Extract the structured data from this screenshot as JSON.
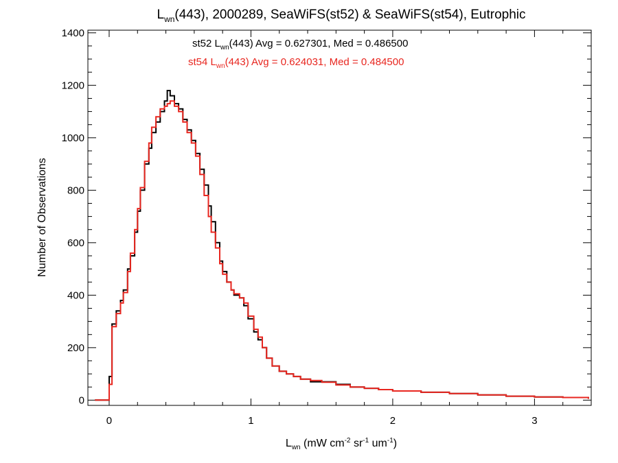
{
  "chart_data": {
    "type": "line",
    "title": {
      "prefix": "L",
      "sub": "wn",
      "suffix": "(443), 2000289, SeaWiFS(st52) & SeaWiFS(st54), Eutrophic"
    },
    "xlabel": {
      "prefix": "L",
      "sub": "wn",
      "p1": " (mW cm",
      "s1": "-2",
      "p2": " sr",
      "s2": "-1",
      "p3": " um",
      "s3": "-1",
      "p4": ")"
    },
    "ylabel": "Number of Observations",
    "xlim": [
      -0.15,
      3.4
    ],
    "ylim": [
      -20,
      1410
    ],
    "xticks": [
      {
        "v": 0,
        "label": "0"
      },
      {
        "v": 1,
        "label": "1"
      },
      {
        "v": 2,
        "label": "2"
      },
      {
        "v": 3,
        "label": "3"
      }
    ],
    "yticks": [
      {
        "v": 0,
        "label": "0"
      },
      {
        "v": 200,
        "label": "200"
      },
      {
        "v": 400,
        "label": "400"
      },
      {
        "v": 600,
        "label": "600"
      },
      {
        "v": 800,
        "label": "800"
      },
      {
        "v": 1000,
        "label": "1000"
      },
      {
        "v": 1200,
        "label": "1200"
      },
      {
        "v": 1400,
        "label": "1400"
      }
    ],
    "legend": [
      {
        "color": "#000000",
        "pre": "st52 L",
        "sub": "wn",
        "post": "(443) Avg = 0.627301, Med = 0.486500"
      },
      {
        "color": "#e8261f",
        "pre": "st54 L",
        "sub": "wn",
        "post": "(443) Avg = 0.624031, Med = 0.484500"
      }
    ],
    "series": [
      {
        "color": "#000000",
        "points": [
          [
            -0.1,
            0
          ],
          [
            0,
            0
          ],
          [
            0,
            90
          ],
          [
            0.02,
            290
          ],
          [
            0.05,
            340
          ],
          [
            0.08,
            380
          ],
          [
            0.1,
            420
          ],
          [
            0.13,
            500
          ],
          [
            0.15,
            550
          ],
          [
            0.18,
            640
          ],
          [
            0.2,
            720
          ],
          [
            0.22,
            800
          ],
          [
            0.25,
            900
          ],
          [
            0.28,
            960
          ],
          [
            0.3,
            1020
          ],
          [
            0.33,
            1060
          ],
          [
            0.36,
            1100
          ],
          [
            0.39,
            1140
          ],
          [
            0.41,
            1180
          ],
          [
            0.43,
            1160
          ],
          [
            0.46,
            1130
          ],
          [
            0.49,
            1110
          ],
          [
            0.52,
            1070
          ],
          [
            0.55,
            1030
          ],
          [
            0.58,
            990
          ],
          [
            0.61,
            940
          ],
          [
            0.64,
            880
          ],
          [
            0.67,
            820
          ],
          [
            0.7,
            740
          ],
          [
            0.72,
            680
          ],
          [
            0.75,
            600
          ],
          [
            0.78,
            530
          ],
          [
            0.8,
            490
          ],
          [
            0.83,
            450
          ],
          [
            0.86,
            420
          ],
          [
            0.88,
            400
          ],
          [
            0.92,
            390
          ],
          [
            0.95,
            360
          ],
          [
            0.98,
            310
          ],
          [
            1.02,
            260
          ],
          [
            1.05,
            230
          ],
          [
            1.08,
            200
          ],
          [
            1.11,
            160
          ],
          [
            1.15,
            130
          ],
          [
            1.2,
            110
          ],
          [
            1.25,
            100
          ],
          [
            1.3,
            90
          ],
          [
            1.35,
            80
          ],
          [
            1.42,
            70
          ],
          [
            1.5,
            70
          ],
          [
            1.6,
            60
          ],
          [
            1.7,
            50
          ],
          [
            1.8,
            45
          ],
          [
            1.9,
            40
          ],
          [
            2.0,
            35
          ],
          [
            2.2,
            30
          ],
          [
            2.4,
            25
          ],
          [
            2.6,
            20
          ],
          [
            2.8,
            15
          ],
          [
            3.0,
            12
          ],
          [
            3.2,
            10
          ],
          [
            3.38,
            5
          ]
        ]
      },
      {
        "color": "#e8261f",
        "points": [
          [
            -0.1,
            0
          ],
          [
            0,
            0
          ],
          [
            0,
            60
          ],
          [
            0.02,
            280
          ],
          [
            0.05,
            330
          ],
          [
            0.08,
            370
          ],
          [
            0.1,
            410
          ],
          [
            0.13,
            490
          ],
          [
            0.15,
            560
          ],
          [
            0.18,
            650
          ],
          [
            0.2,
            730
          ],
          [
            0.22,
            810
          ],
          [
            0.25,
            910
          ],
          [
            0.28,
            980
          ],
          [
            0.3,
            1040
          ],
          [
            0.33,
            1080
          ],
          [
            0.36,
            1110
          ],
          [
            0.39,
            1120
          ],
          [
            0.41,
            1130
          ],
          [
            0.43,
            1140
          ],
          [
            0.46,
            1120
          ],
          [
            0.49,
            1100
          ],
          [
            0.52,
            1060
          ],
          [
            0.55,
            1020
          ],
          [
            0.58,
            980
          ],
          [
            0.61,
            930
          ],
          [
            0.64,
            860
          ],
          [
            0.67,
            780
          ],
          [
            0.7,
            700
          ],
          [
            0.72,
            640
          ],
          [
            0.75,
            580
          ],
          [
            0.78,
            520
          ],
          [
            0.8,
            480
          ],
          [
            0.83,
            450
          ],
          [
            0.86,
            420
          ],
          [
            0.88,
            405
          ],
          [
            0.92,
            390
          ],
          [
            0.95,
            370
          ],
          [
            0.98,
            320
          ],
          [
            1.02,
            270
          ],
          [
            1.05,
            240
          ],
          [
            1.08,
            200
          ],
          [
            1.11,
            160
          ],
          [
            1.15,
            130
          ],
          [
            1.2,
            110
          ],
          [
            1.25,
            100
          ],
          [
            1.3,
            90
          ],
          [
            1.35,
            80
          ],
          [
            1.42,
            75
          ],
          [
            1.5,
            68
          ],
          [
            1.6,
            58
          ],
          [
            1.7,
            50
          ],
          [
            1.8,
            45
          ],
          [
            1.9,
            40
          ],
          [
            2.0,
            35
          ],
          [
            2.2,
            30
          ],
          [
            2.4,
            25
          ],
          [
            2.6,
            20
          ],
          [
            2.8,
            15
          ],
          [
            3.0,
            12
          ],
          [
            3.2,
            10
          ],
          [
            3.38,
            5
          ]
        ]
      }
    ]
  }
}
